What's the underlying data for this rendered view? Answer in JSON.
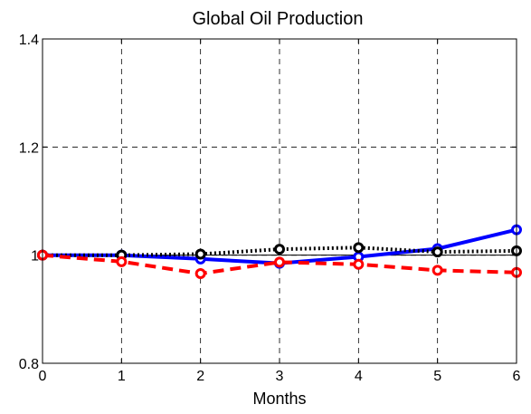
{
  "chart_data": {
    "type": "line",
    "title": "Global Oil Production",
    "xlabel": "Months",
    "ylabel": "",
    "x": [
      0,
      1,
      2,
      3,
      4,
      5,
      6
    ],
    "xlim": [
      0,
      6
    ],
    "ylim": [
      0.8,
      1.4
    ],
    "xticks": [
      0,
      1,
      2,
      3,
      4,
      5,
      6
    ],
    "yticks": [
      0.8,
      1,
      1.2,
      1.4
    ],
    "xtick_labels": [
      "0",
      "1",
      "2",
      "3",
      "4",
      "5",
      "6"
    ],
    "ytick_labels": [
      "0.8",
      "1",
      "1.2",
      "1.4"
    ],
    "grid": true,
    "reference_line": 1,
    "series": [
      {
        "color": "#0000ff",
        "line_style": "solid",
        "marker": "circle",
        "values": [
          1.0,
          1.0,
          0.993,
          0.985,
          0.997,
          1.012,
          1.047
        ]
      },
      {
        "color": "#000000",
        "line_style": "dotted",
        "marker": "circle",
        "values": [
          1.0,
          1.0,
          1.002,
          1.011,
          1.014,
          1.006,
          1.008
        ]
      },
      {
        "color": "#ff0000",
        "line_style": "dashed",
        "marker": "circle",
        "values": [
          1.0,
          0.988,
          0.966,
          0.987,
          0.983,
          0.972,
          0.968
        ]
      }
    ]
  }
}
